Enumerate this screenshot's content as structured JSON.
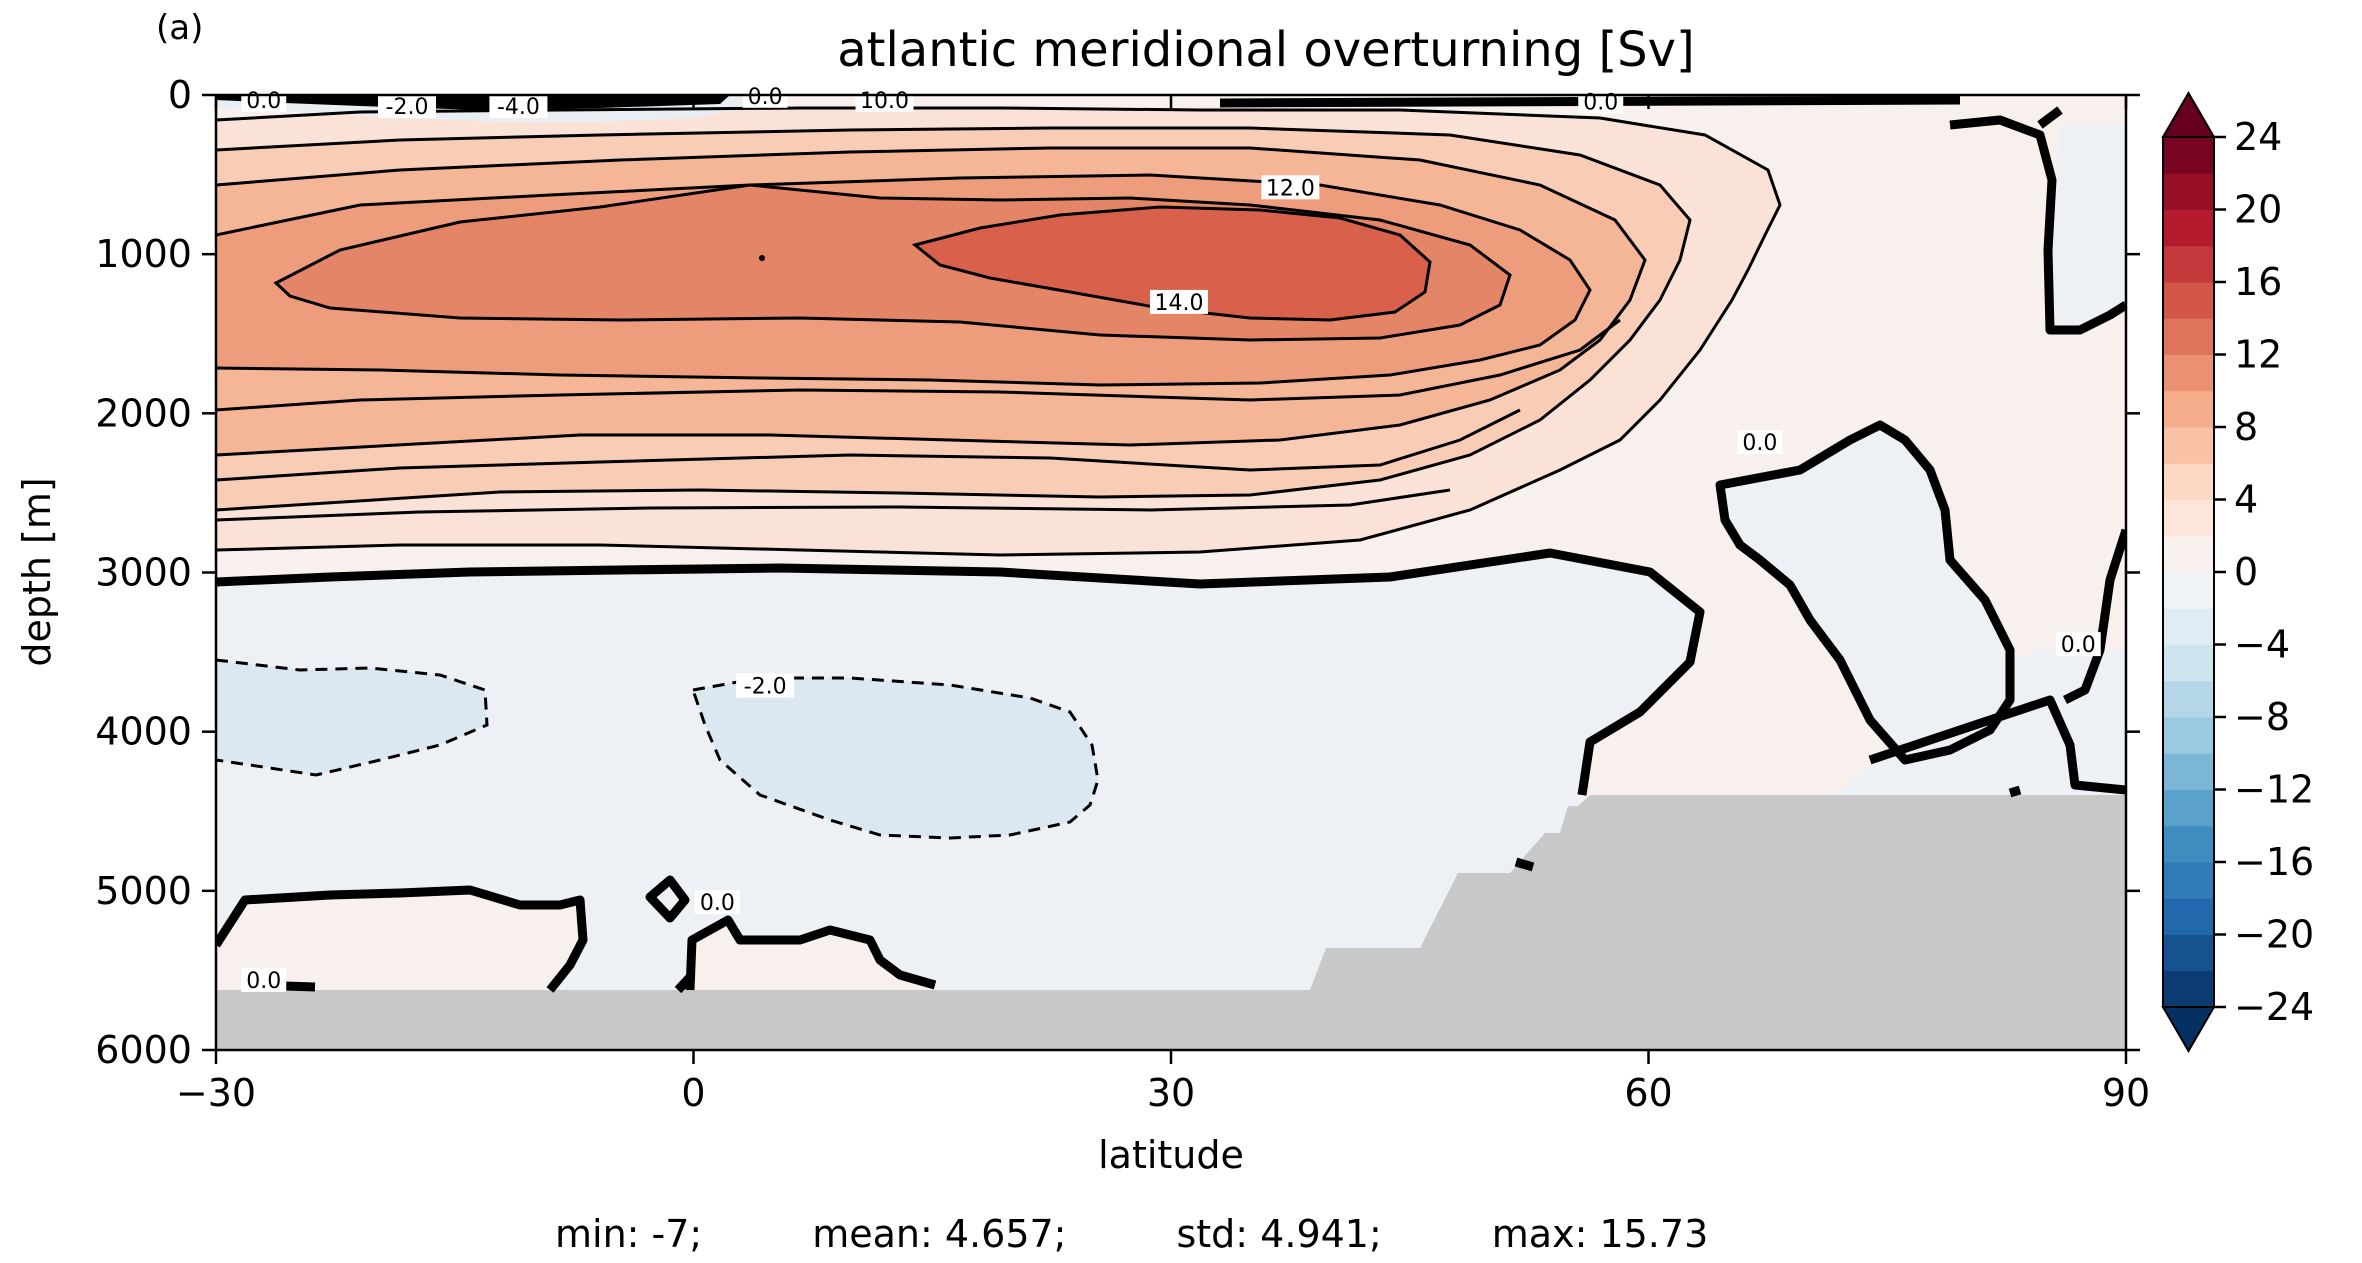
{
  "panel_label": "(a)",
  "stats": {
    "min": "min: -7;",
    "mean": "mean: 4.657;",
    "std": "std: 4.941;",
    "max": "max: 15.73"
  },
  "chart_data": {
    "type": "heatmap",
    "subtype": "filled-contour",
    "title": "atlantic meridional overturning [Sv]",
    "xlabel": "latitude",
    "ylabel": "depth [m]",
    "xlim": [
      -30,
      90
    ],
    "ylim": [
      6000,
      0
    ],
    "xticks": [
      -30,
      0,
      30,
      60,
      90
    ],
    "xticklabels": [
      "−30",
      "0",
      "30",
      "60",
      "90"
    ],
    "yticks": [
      0,
      1000,
      2000,
      3000,
      4000,
      5000,
      6000
    ],
    "yticklabels": [
      "0",
      "1000",
      "2000",
      "3000",
      "4000",
      "5000",
      "6000"
    ],
    "colormap": "RdBu_r",
    "colorbar": {
      "levels_min": -24,
      "levels_max": 24,
      "level_step": 2,
      "extend": "both",
      "ticks": [
        24,
        20,
        16,
        12,
        8,
        4,
        0,
        -4,
        -8,
        -12,
        -16,
        -20,
        -24
      ],
      "ticklabels": [
        "24",
        "20",
        "16",
        "12",
        "8",
        "4",
        "0",
        "−4",
        "−8",
        "−12",
        "−16",
        "−20",
        "−24"
      ]
    },
    "contour_labels": [
      {
        "text": "0.0",
        "lat": -27,
        "depth": 30
      },
      {
        "text": "-2.0",
        "lat": -18,
        "depth": 70
      },
      {
        "text": "-4.0",
        "lat": -11,
        "depth": 70
      },
      {
        "text": "0.0",
        "lat": 4.5,
        "depth": 5
      },
      {
        "text": "10.0",
        "lat": 12,
        "depth": 30
      },
      {
        "text": "0.0",
        "lat": 57,
        "depth": 40
      },
      {
        "text": "12.0",
        "lat": 37.5,
        "depth": 580
      },
      {
        "text": "14.0",
        "lat": 30.5,
        "depth": 1300
      },
      {
        "text": "0.0",
        "lat": 67,
        "depth": 2180
      },
      {
        "text": "-2.0",
        "lat": 4.5,
        "depth": 3710
      },
      {
        "text": "0.0",
        "lat": 1.5,
        "depth": 5070
      },
      {
        "text": "0.0",
        "lat": 87,
        "depth": 3450
      },
      {
        "text": "0.0",
        "lat": -27,
        "depth": 5560
      }
    ],
    "land_mask_color": "#c8c8c8"
  }
}
